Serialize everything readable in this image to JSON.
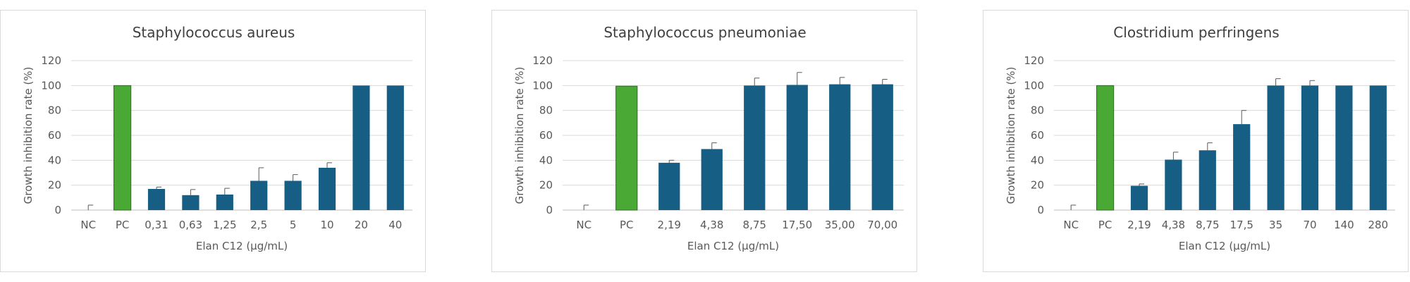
{
  "chart_data": [
    {
      "type": "bar",
      "title": "Staphylococcus aureus",
      "xlabel": "Elan C12 (µg/mL)",
      "ylabel": "Growth inhibition rate (%)",
      "ylim": [
        0,
        120
      ],
      "yticks": [
        0,
        20,
        40,
        60,
        80,
        100,
        120
      ],
      "grid": true,
      "categories": [
        "NC",
        "PC",
        "0,31",
        "0,63",
        "1,25",
        "2,5",
        "5",
        "10",
        "20",
        "40"
      ],
      "values": [
        0,
        100,
        17,
        12,
        12.5,
        23.5,
        23.5,
        34,
        100,
        100
      ],
      "errors": [
        4,
        0,
        1.5,
        4.5,
        5,
        10.5,
        5,
        4,
        0,
        0
      ],
      "colors": [
        "#4aa934",
        "#4aa934",
        "#165e83",
        "#165e83",
        "#165e83",
        "#165e83",
        "#165e83",
        "#165e83",
        "#165e83",
        "#165e83"
      ]
    },
    {
      "type": "bar",
      "title": "Staphylococcus pneumoniae",
      "xlabel": "Elan C12 (µg/mL)",
      "ylabel": "Growth inhibition rate (%)",
      "ylim": [
        0,
        120
      ],
      "yticks": [
        0,
        20,
        40,
        60,
        80,
        100,
        120
      ],
      "grid": true,
      "categories": [
        "NC",
        "PC",
        "2,19",
        "4,38",
        "8,75",
        "17,50",
        "35,00",
        "70,00"
      ],
      "values": [
        0,
        99.5,
        38,
        49,
        100,
        100.5,
        101,
        101
      ],
      "errors": [
        4,
        0,
        2,
        5,
        6,
        10,
        5.5,
        4
      ],
      "colors": [
        "#4aa934",
        "#4aa934",
        "#165e83",
        "#165e83",
        "#165e83",
        "#165e83",
        "#165e83",
        "#165e83"
      ]
    },
    {
      "type": "bar",
      "title": "Clostridium perfringens",
      "xlabel": "Elan C12 (µg/mL)",
      "ylabel": "Growth inhibition rate (%)",
      "ylim": [
        0,
        120
      ],
      "yticks": [
        0,
        20,
        40,
        60,
        80,
        100,
        120
      ],
      "grid": true,
      "categories": [
        "NC",
        "PC",
        "2,19",
        "4,38",
        "8,75",
        "17,5",
        "35",
        "70",
        "140",
        "280"
      ],
      "values": [
        0,
        100,
        19.5,
        40.5,
        48,
        69,
        100,
        100,
        100,
        100
      ],
      "errors": [
        4,
        0,
        1.5,
        6,
        6,
        11,
        5.5,
        4,
        0,
        0
      ],
      "colors": [
        "#4aa934",
        "#4aa934",
        "#165e83",
        "#165e83",
        "#165e83",
        "#165e83",
        "#165e83",
        "#165e83",
        "#165e83",
        "#165e83"
      ]
    }
  ]
}
